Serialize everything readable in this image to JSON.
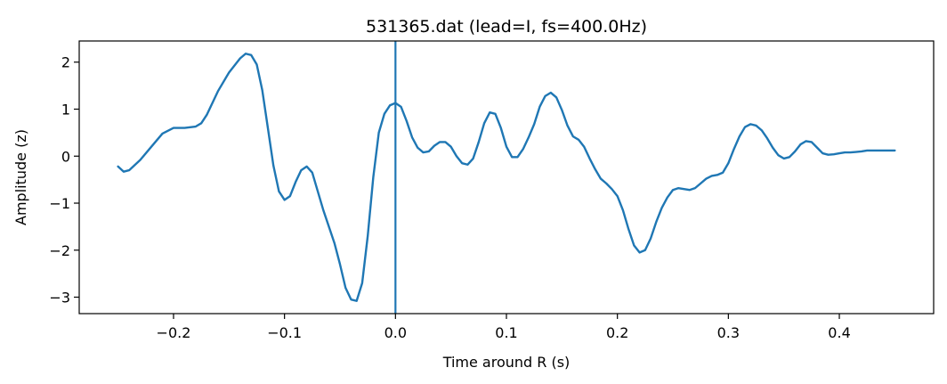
{
  "chart_data": {
    "type": "line",
    "title": "531365.dat (lead=I, fs=400.0Hz)",
    "xlabel": "Time around R (s)",
    "ylabel": "Amplitude (z)",
    "xlim": [
      -0.285,
      0.485
    ],
    "ylim": [
      -3.35,
      2.45
    ],
    "x_ticks": [
      -0.2,
      -0.1,
      0.0,
      0.1,
      0.2,
      0.3,
      0.4
    ],
    "x_tick_labels": [
      "−0.2",
      "−0.1",
      "0.0",
      "0.1",
      "0.2",
      "0.3",
      "0.4"
    ],
    "y_ticks": [
      2,
      1,
      0,
      -1,
      -2,
      -3
    ],
    "y_tick_labels": [
      "2",
      "1",
      "0",
      "−1",
      "−2",
      "−3"
    ],
    "grid": false,
    "line_color": "#1f77b4",
    "vline": {
      "x": 0.0,
      "color": "#1f77b4"
    },
    "series": [
      {
        "x": [
          -0.25,
          -0.245,
          -0.24,
          -0.23,
          -0.22,
          -0.21,
          -0.2,
          -0.19,
          -0.18,
          -0.175,
          -0.17,
          -0.16,
          -0.15,
          -0.14,
          -0.135,
          -0.13,
          -0.125,
          -0.12,
          -0.115,
          -0.11,
          -0.105,
          -0.1,
          -0.095,
          -0.09,
          -0.085,
          -0.08,
          -0.075,
          -0.07,
          -0.065,
          -0.06,
          -0.055,
          -0.05,
          -0.045,
          -0.04,
          -0.035,
          -0.03,
          -0.025,
          -0.02,
          -0.015,
          -0.01,
          -0.005,
          0.0,
          0.005,
          0.01,
          0.015,
          0.02,
          0.025,
          0.03,
          0.035,
          0.04,
          0.045,
          0.05,
          0.055,
          0.06,
          0.065,
          0.07,
          0.075,
          0.08,
          0.085,
          0.09,
          0.095,
          0.1,
          0.105,
          0.11,
          0.115,
          0.12,
          0.125,
          0.13,
          0.135,
          0.14,
          0.145,
          0.15,
          0.155,
          0.16,
          0.165,
          0.17,
          0.175,
          0.18,
          0.185,
          0.19,
          0.195,
          0.2,
          0.205,
          0.21,
          0.215,
          0.22,
          0.225,
          0.23,
          0.235,
          0.24,
          0.245,
          0.25,
          0.255,
          0.26,
          0.265,
          0.27,
          0.275,
          0.28,
          0.285,
          0.29,
          0.295,
          0.3,
          0.305,
          0.31,
          0.315,
          0.32,
          0.325,
          0.33,
          0.335,
          0.34,
          0.345,
          0.35,
          0.355,
          0.36,
          0.365,
          0.37,
          0.375,
          0.38,
          0.385,
          0.39,
          0.395,
          0.4,
          0.405,
          0.41,
          0.415,
          0.42,
          0.425,
          0.43,
          0.435,
          0.44,
          0.445,
          0.45
        ],
        "y": [
          -0.22,
          -0.33,
          -0.3,
          -0.08,
          0.2,
          0.48,
          0.6,
          0.6,
          0.63,
          0.7,
          0.88,
          1.38,
          1.78,
          2.08,
          2.18,
          2.15,
          1.95,
          1.4,
          0.6,
          -0.2,
          -0.75,
          -0.93,
          -0.85,
          -0.55,
          -0.3,
          -0.22,
          -0.35,
          -0.75,
          -1.15,
          -1.5,
          -1.85,
          -2.3,
          -2.8,
          -3.05,
          -3.08,
          -2.7,
          -1.7,
          -0.45,
          0.5,
          0.9,
          1.08,
          1.13,
          1.05,
          0.75,
          0.4,
          0.18,
          0.08,
          0.1,
          0.22,
          0.3,
          0.3,
          0.2,
          0.0,
          -0.15,
          -0.18,
          -0.05,
          0.3,
          0.7,
          0.93,
          0.9,
          0.6,
          0.2,
          -0.02,
          -0.02,
          0.15,
          0.4,
          0.68,
          1.05,
          1.28,
          1.35,
          1.25,
          0.98,
          0.65,
          0.42,
          0.35,
          0.2,
          -0.05,
          -0.28,
          -0.48,
          -0.58,
          -0.7,
          -0.85,
          -1.15,
          -1.55,
          -1.9,
          -2.05,
          -2.0,
          -1.75,
          -1.4,
          -1.1,
          -0.88,
          -0.72,
          -0.68,
          -0.7,
          -0.72,
          -0.68,
          -0.58,
          -0.48,
          -0.42,
          -0.4,
          -0.35,
          -0.15,
          0.15,
          0.42,
          0.62,
          0.68,
          0.65,
          0.55,
          0.38,
          0.18,
          0.02,
          -0.05,
          -0.02,
          0.1,
          0.25,
          0.32,
          0.3,
          0.18,
          0.06,
          0.03,
          0.04,
          0.06,
          0.08,
          0.08,
          0.09,
          0.1,
          0.12,
          0.12,
          0.12,
          0.12,
          0.12,
          0.12
        ]
      }
    ]
  }
}
